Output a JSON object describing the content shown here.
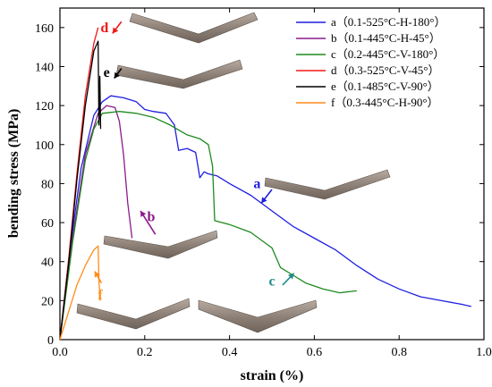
{
  "chart_data": {
    "type": "line",
    "xlabel": "strain (%)",
    "ylabel": "bending stress (MPa)",
    "xlim": [
      0,
      1.0
    ],
    "ylim": [
      0,
      170
    ],
    "xticks": [
      "0.0",
      "0.2",
      "0.4",
      "0.6",
      "0.8",
      "1.0"
    ],
    "yticks": [
      "0",
      "20",
      "40",
      "60",
      "80",
      "100",
      "120",
      "140",
      "160"
    ],
    "xtick_values": [
      0,
      0.2,
      0.4,
      0.6,
      0.8,
      1.0
    ],
    "ytick_values": [
      0,
      20,
      40,
      60,
      80,
      100,
      120,
      140,
      160
    ],
    "grid": false,
    "legend_position": "top-right",
    "colors": {
      "a": "#1f1fe0",
      "b": "#8b1a8b",
      "c": "#1e8a1e",
      "d": "#f01818",
      "e": "#000000",
      "f": "#ff8c1a",
      "annotation_b": "#8b1a8b",
      "annotation_c": "#1f8a8a"
    },
    "series": [
      {
        "key": "a",
        "name": "a（0.1-525°C-H-180°）",
        "color": "#1f1fe0",
        "x": [
          0,
          0.02,
          0.05,
          0.08,
          0.1,
          0.12,
          0.15,
          0.18,
          0.2,
          0.22,
          0.25,
          0.27,
          0.28,
          0.3,
          0.32,
          0.33,
          0.34,
          0.35,
          0.37,
          0.4,
          0.45,
          0.5,
          0.55,
          0.6,
          0.65,
          0.7,
          0.75,
          0.8,
          0.85,
          0.9,
          0.95,
          0.97
        ],
        "y": [
          0,
          40,
          88,
          115,
          122,
          125,
          124,
          122,
          118,
          117,
          116,
          110,
          97,
          98,
          96,
          83,
          86,
          85,
          84,
          80,
          74,
          66,
          58,
          52,
          46,
          38,
          31,
          26,
          22,
          20,
          18,
          17
        ]
      },
      {
        "key": "b",
        "name": "b（0.1-445°C-H-45°）",
        "color": "#8b1a8b",
        "x": [
          0,
          0.03,
          0.06,
          0.09,
          0.11,
          0.13,
          0.14,
          0.15,
          0.16,
          0.17
        ],
        "y": [
          0,
          52,
          95,
          116,
          120,
          119,
          112,
          95,
          70,
          52
        ]
      },
      {
        "key": "c",
        "name": "c（0.2-445°C-V-180°）",
        "color": "#1e8a1e",
        "x": [
          0,
          0.03,
          0.06,
          0.08,
          0.1,
          0.14,
          0.18,
          0.22,
          0.26,
          0.3,
          0.33,
          0.35,
          0.36,
          0.365,
          0.4,
          0.45,
          0.5,
          0.52,
          0.55,
          0.58,
          0.62,
          0.66,
          0.7
        ],
        "y": [
          0,
          50,
          92,
          108,
          116,
          117,
          116,
          114,
          110,
          105,
          103,
          100,
          89,
          61,
          59,
          55,
          47,
          37,
          33,
          29,
          26,
          24,
          25
        ]
      },
      {
        "key": "d",
        "name": "d（0.3-525°C-V-45°）",
        "color": "#f01818",
        "x": [
          0,
          0.02,
          0.04,
          0.06,
          0.08,
          0.09
        ],
        "y": [
          0,
          40,
          85,
          125,
          152,
          160
        ]
      },
      {
        "key": "e",
        "name": "e（0.1-485°C-V-90°）",
        "color": "#000000",
        "x": [
          0,
          0.02,
          0.04,
          0.06,
          0.08,
          0.09,
          0.092,
          0.094,
          0.096
        ],
        "y": [
          0,
          38,
          82,
          120,
          148,
          153,
          110,
          135,
          108
        ]
      },
      {
        "key": "f",
        "name": "f（0.3-445°C-H-90°）",
        "color": "#ff8c1a",
        "x": [
          0,
          0.02,
          0.04,
          0.06,
          0.08,
          0.09,
          0.092,
          0.095
        ],
        "y": [
          0,
          14,
          28,
          38,
          46,
          48,
          30,
          20
        ]
      }
    ],
    "annotations": [
      {
        "key": "a",
        "text": "a",
        "color": "#1f1fe0"
      },
      {
        "key": "b",
        "text": "b",
        "color": "#8b1a8b"
      },
      {
        "key": "c",
        "text": "c",
        "color": "#1f8a8a"
      },
      {
        "key": "d",
        "text": "d",
        "color": "#f01818"
      },
      {
        "key": "e",
        "text": "e",
        "color": "#000000"
      },
      {
        "key": "f",
        "text": "f",
        "color": "#ff8c1a"
      }
    ]
  }
}
